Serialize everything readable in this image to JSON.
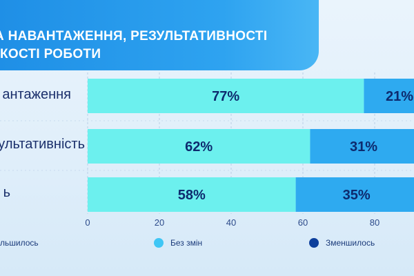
{
  "header": {
    "title": "НА НАВАНТАЖЕННЯ, РЕЗУЛЬТАТИВНОСТІ\nКОСТІ РОБОТИ"
  },
  "colors": {
    "increased": "#7fe3ee",
    "unchanged": "#6cf0ee",
    "decreased": "#2eaaf0",
    "label_text": "#0d2a6e",
    "axis_text": "#2c4a8a",
    "legend_unchanged_dot": "#3fc6f5",
    "legend_decreased_dot": "#0d3f9c"
  },
  "chart_data": {
    "type": "bar",
    "orientation": "horizontal",
    "stacked": true,
    "categories": [
      "антаження",
      "ультативність",
      "ь"
    ],
    "series": [
      {
        "name": "Без змін",
        "values": [
          77,
          62,
          58
        ]
      },
      {
        "name": "Зменшилось",
        "values": [
          21,
          31,
          35
        ]
      }
    ],
    "value_labels": [
      [
        "77%",
        "21%"
      ],
      [
        "62%",
        "31%"
      ],
      [
        "58%",
        "35%"
      ]
    ],
    "xlim": [
      0,
      100
    ],
    "xticks": [
      "0",
      "20",
      "40",
      "60",
      "80"
    ],
    "grid": true,
    "legend": {
      "placement": "bottom",
      "items": [
        {
          "label": "льшилось"
        },
        {
          "label": "Без змін"
        },
        {
          "label": "Зменшилось"
        }
      ]
    }
  }
}
